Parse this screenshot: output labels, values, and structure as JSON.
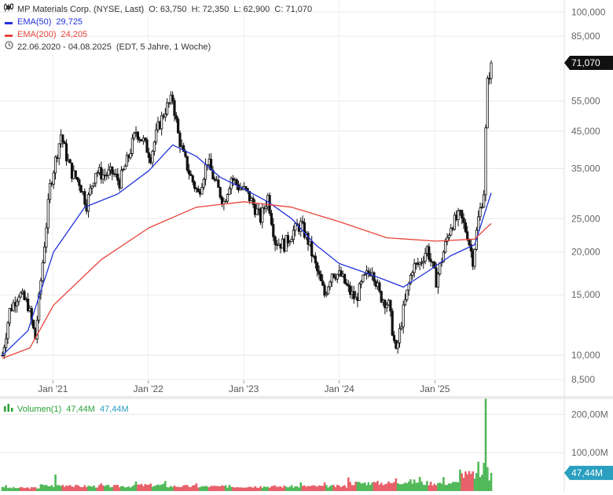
{
  "header": {
    "title": "MP Materials Corp. (NYSE, Last)",
    "ohlc": "O: 63,750  H: 72,350  L: 62,900  C: 71,070",
    "ema50_label": "EMA(50)",
    "ema50_value": "29,725",
    "ema200_label": "EMA(200)",
    "ema200_value": "24,205",
    "range_text": "22.06.2020 - 04.08.2025",
    "range_info": "(EDT, 5 Jahre, 1 Woche)",
    "chart_icon": "candlestick-icon",
    "clock_icon": "clock-icon"
  },
  "volume_header": {
    "label": "Volumen(1)",
    "value1": "47,44M",
    "value2": "47,44M"
  },
  "colors": {
    "ema50": "#2233dd",
    "ema200": "#e8443a",
    "candle": "#111111",
    "volume_up": "#52b95a",
    "volume_down": "#e8606a",
    "price_badge": "#111111",
    "volume_badge": "#2a9fc0",
    "grid": "#e8e8e8"
  },
  "chart_data": [
    {
      "type": "candlestick",
      "title": "MP Materials Corp. (NYSE, Last)",
      "scale": "log",
      "ylim": [
        8500,
        105000
      ],
      "y_ticks": [
        {
          "value": 100000,
          "label": "100,000"
        },
        {
          "value": 85000,
          "label": "85,000"
        },
        {
          "value": 55000,
          "label": "55,000"
        },
        {
          "value": 45000,
          "label": "45,000"
        },
        {
          "value": 35000,
          "label": "35,000"
        },
        {
          "value": 25000,
          "label": "25,000"
        },
        {
          "value": 20000,
          "label": "20,000"
        },
        {
          "value": 15000,
          "label": "15,000"
        },
        {
          "value": 10000,
          "label": "10,000"
        },
        {
          "value": 8500,
          "label": "8,500"
        }
      ],
      "x_range": [
        "2020-06-22",
        "2025-08-04"
      ],
      "x_ticks": [
        {
          "date": "2021-01-01",
          "label": "Jan '21"
        },
        {
          "date": "2022-01-01",
          "label": "Jan '22"
        },
        {
          "date": "2023-01-01",
          "label": "Jan '23"
        },
        {
          "date": "2024-01-01",
          "label": "Jan '24"
        },
        {
          "date": "2025-01-01",
          "label": "Jan '25"
        }
      ],
      "last_price": {
        "value": 71070,
        "label": "71,070"
      },
      "grid": true,
      "price_path": [
        {
          "date": "2020-06-22",
          "close": 10000
        },
        {
          "date": "2020-07-20",
          "close": 13500
        },
        {
          "date": "2020-08-24",
          "close": 15200
        },
        {
          "date": "2020-09-28",
          "close": 14000
        },
        {
          "date": "2020-10-26",
          "close": 11200
        },
        {
          "date": "2020-11-16",
          "close": 16500
        },
        {
          "date": "2020-12-07",
          "close": 24000
        },
        {
          "date": "2020-12-21",
          "close": 31000
        },
        {
          "date": "2021-01-11",
          "close": 37000
        },
        {
          "date": "2021-02-01",
          "close": 44000
        },
        {
          "date": "2021-02-22",
          "close": 38000
        },
        {
          "date": "2021-03-15",
          "close": 34000
        },
        {
          "date": "2021-04-12",
          "close": 32000
        },
        {
          "date": "2021-05-10",
          "close": 27500
        },
        {
          "date": "2021-06-14",
          "close": 34500
        },
        {
          "date": "2021-07-12",
          "close": 33500
        },
        {
          "date": "2021-08-16",
          "close": 34000
        },
        {
          "date": "2021-09-13",
          "close": 32000
        },
        {
          "date": "2021-10-18",
          "close": 38000
        },
        {
          "date": "2021-11-15",
          "close": 45000
        },
        {
          "date": "2021-12-13",
          "close": 42000
        },
        {
          "date": "2022-01-10",
          "close": 38000
        },
        {
          "date": "2022-02-07",
          "close": 46000
        },
        {
          "date": "2022-03-07",
          "close": 52000
        },
        {
          "date": "2022-04-04",
          "close": 56000
        },
        {
          "date": "2022-04-25",
          "close": 44000
        },
        {
          "date": "2022-05-16",
          "close": 38000
        },
        {
          "date": "2022-06-13",
          "close": 33000
        },
        {
          "date": "2022-07-11",
          "close": 29500
        },
        {
          "date": "2022-08-15",
          "close": 37000
        },
        {
          "date": "2022-09-12",
          "close": 32000
        },
        {
          "date": "2022-10-17",
          "close": 28000
        },
        {
          "date": "2022-11-14",
          "close": 33000
        },
        {
          "date": "2022-12-12",
          "close": 31000
        },
        {
          "date": "2023-01-09",
          "close": 30000
        },
        {
          "date": "2023-02-06",
          "close": 27500
        },
        {
          "date": "2023-03-06",
          "close": 25000
        },
        {
          "date": "2023-04-03",
          "close": 29000
        },
        {
          "date": "2023-05-01",
          "close": 21500
        },
        {
          "date": "2023-06-05",
          "close": 21000
        },
        {
          "date": "2023-07-10",
          "close": 23000
        },
        {
          "date": "2023-08-07",
          "close": 24000
        },
        {
          "date": "2023-09-04",
          "close": 21500
        },
        {
          "date": "2023-10-09",
          "close": 17500
        },
        {
          "date": "2023-11-06",
          "close": 15000
        },
        {
          "date": "2023-12-04",
          "close": 17500
        },
        {
          "date": "2024-01-08",
          "close": 17000
        },
        {
          "date": "2024-02-05",
          "close": 15500
        },
        {
          "date": "2024-03-04",
          "close": 14500
        },
        {
          "date": "2024-04-01",
          "close": 16500
        },
        {
          "date": "2024-05-06",
          "close": 18000
        },
        {
          "date": "2024-06-03",
          "close": 15000
        },
        {
          "date": "2024-07-08",
          "close": 14000
        },
        {
          "date": "2024-08-05",
          "close": 10100
        },
        {
          "date": "2024-09-02",
          "close": 13500
        },
        {
          "date": "2024-10-07",
          "close": 18000
        },
        {
          "date": "2024-11-04",
          "close": 18500
        },
        {
          "date": "2024-12-02",
          "close": 20500
        },
        {
          "date": "2025-01-06",
          "close": 16500
        },
        {
          "date": "2025-02-03",
          "close": 20000
        },
        {
          "date": "2025-03-03",
          "close": 24000
        },
        {
          "date": "2025-04-07",
          "close": 25500
        },
        {
          "date": "2025-05-05",
          "close": 22500
        },
        {
          "date": "2025-05-26",
          "close": 19000
        },
        {
          "date": "2025-06-16",
          "close": 25000
        },
        {
          "date": "2025-07-07",
          "close": 30000
        },
        {
          "date": "2025-07-14",
          "close": 45000
        },
        {
          "date": "2025-07-21",
          "close": 62000
        },
        {
          "date": "2025-08-04",
          "close": 71070
        }
      ],
      "series": [
        {
          "name": "EMA(50)",
          "values": [
            {
              "date": "2020-06-22",
              "value": 10000
            },
            {
              "date": "2020-09-28",
              "value": 11800
            },
            {
              "date": "2021-01-04",
              "value": 20000
            },
            {
              "date": "2021-05-03",
              "value": 27000
            },
            {
              "date": "2021-09-06",
              "value": 29500
            },
            {
              "date": "2022-01-03",
              "value": 34500
            },
            {
              "date": "2022-04-04",
              "value": 41000
            },
            {
              "date": "2022-07-04",
              "value": 38000
            },
            {
              "date": "2022-10-03",
              "value": 33000
            },
            {
              "date": "2023-01-02",
              "value": 30500
            },
            {
              "date": "2023-04-03",
              "value": 28000
            },
            {
              "date": "2023-07-03",
              "value": 25000
            },
            {
              "date": "2023-10-02",
              "value": 21000
            },
            {
              "date": "2024-01-01",
              "value": 18500
            },
            {
              "date": "2024-04-01",
              "value": 17500
            },
            {
              "date": "2024-07-01",
              "value": 16500
            },
            {
              "date": "2024-09-02",
              "value": 15800
            },
            {
              "date": "2024-12-02",
              "value": 17500
            },
            {
              "date": "2025-03-03",
              "value": 19500
            },
            {
              "date": "2025-06-02",
              "value": 21000
            },
            {
              "date": "2025-08-04",
              "value": 29725
            }
          ]
        },
        {
          "name": "EMA(200)",
          "values": [
            {
              "date": "2020-06-22",
              "value": 9800
            },
            {
              "date": "2020-10-05",
              "value": 10500
            },
            {
              "date": "2021-01-04",
              "value": 14000
            },
            {
              "date": "2021-07-05",
              "value": 19000
            },
            {
              "date": "2022-01-03",
              "value": 23500
            },
            {
              "date": "2022-07-04",
              "value": 27000
            },
            {
              "date": "2023-01-02",
              "value": 28000
            },
            {
              "date": "2023-07-03",
              "value": 27000
            },
            {
              "date": "2024-01-01",
              "value": 24500
            },
            {
              "date": "2024-07-01",
              "value": 22000
            },
            {
              "date": "2025-01-06",
              "value": 21500
            },
            {
              "date": "2025-06-02",
              "value": 21800
            },
            {
              "date": "2025-08-04",
              "value": 24205
            }
          ]
        }
      ]
    },
    {
      "type": "bar",
      "title": "Volumen(1)",
      "ylim": [
        0,
        215000000
      ],
      "y_ticks": [
        {
          "value": 200000000,
          "label": "200,00M"
        },
        {
          "value": 100000000,
          "label": "100,00M"
        }
      ],
      "last_value": {
        "value": 47440000,
        "label": "47,44M"
      },
      "values": [
        {
          "date": "2020-07-06",
          "value": 12000000
        },
        {
          "date": "2020-11-16",
          "value": 20000000
        },
        {
          "date": "2021-01-11",
          "value": 38000000
        },
        {
          "date": "2021-03-08",
          "value": 22000000
        },
        {
          "date": "2021-07-05",
          "value": 18000000
        },
        {
          "date": "2021-11-15",
          "value": 25000000
        },
        {
          "date": "2022-03-07",
          "value": 22000000
        },
        {
          "date": "2022-07-04",
          "value": 18000000
        },
        {
          "date": "2022-11-07",
          "value": 17000000
        },
        {
          "date": "2023-03-06",
          "value": 17000000
        },
        {
          "date": "2023-08-07",
          "value": 20000000
        },
        {
          "date": "2023-11-06",
          "value": 18000000
        },
        {
          "date": "2024-02-05",
          "value": 45000000
        },
        {
          "date": "2024-05-06",
          "value": 30000000
        },
        {
          "date": "2024-08-05",
          "value": 38000000
        },
        {
          "date": "2024-11-04",
          "value": 35000000
        },
        {
          "date": "2025-02-03",
          "value": 30000000
        },
        {
          "date": "2025-04-07",
          "value": 78000000
        },
        {
          "date": "2025-06-16",
          "value": 60000000
        },
        {
          "date": "2025-07-07",
          "value": 85000000
        },
        {
          "date": "2025-07-14",
          "value": 205000000
        },
        {
          "date": "2025-07-21",
          "value": 62000000
        },
        {
          "date": "2025-08-04",
          "value": 47440000
        }
      ]
    }
  ]
}
